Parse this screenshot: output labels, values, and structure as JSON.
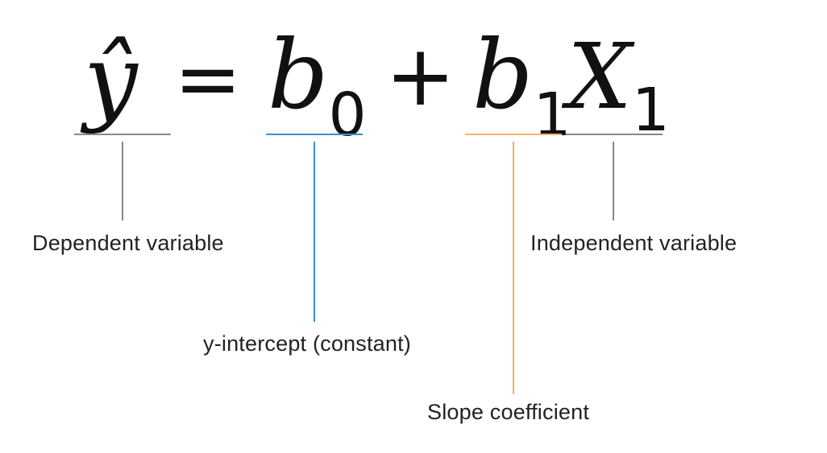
{
  "colors": {
    "neutral": "#888888",
    "intercept": "#3a8fd0",
    "slope": "#f2b366",
    "text": "#111111"
  },
  "equation": {
    "y_hat": "ŷ",
    "equals": "=",
    "b0_base": "b",
    "b0_sub": "0",
    "plus": "+",
    "b1_base": "b",
    "b1_sub": "1",
    "x1_base": "X",
    "x1_sub": "1"
  },
  "labels": {
    "dependent": "Dependent variable",
    "intercept": "y-intercept (constant)",
    "slope": "Slope coefficient",
    "independent": "Independent variable"
  }
}
